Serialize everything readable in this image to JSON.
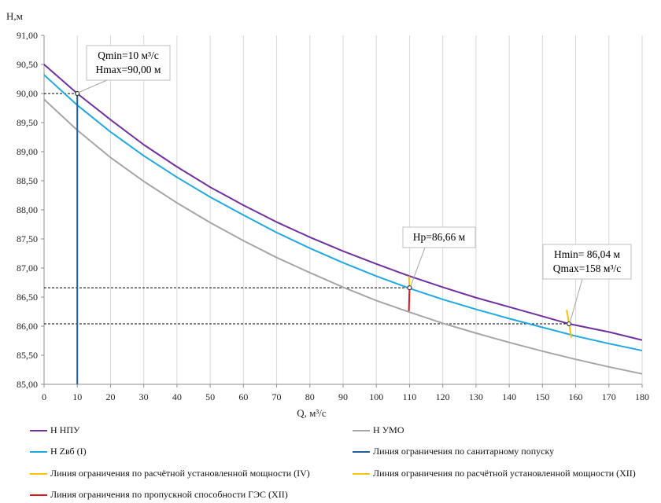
{
  "chart_data": {
    "type": "line",
    "xlabel": "Q, м³/с",
    "ylabel": "Н,м",
    "xlim": [
      0,
      180
    ],
    "ylim": [
      85.0,
      91.0
    ],
    "x_ticks": [
      "0",
      "10",
      "20",
      "30",
      "40",
      "50",
      "60",
      "70",
      "80",
      "90",
      "100",
      "110",
      "120",
      "130",
      "140",
      "150",
      "160",
      "170",
      "180"
    ],
    "y_ticks": [
      "85,00",
      "85,50",
      "86,00",
      "86,50",
      "87,00",
      "87,50",
      "88,00",
      "88,50",
      "89,00",
      "89,50",
      "90,00",
      "90,50",
      "91,00"
    ],
    "grid": "vertical",
    "series": [
      {
        "name": "Н НПУ",
        "color": "#7030a0",
        "x": [
          0,
          10,
          20,
          30,
          40,
          50,
          60,
          70,
          80,
          90,
          100,
          110,
          120,
          130,
          140,
          150,
          158,
          170,
          180
        ],
        "y": [
          90.5,
          90.0,
          89.55,
          89.12,
          88.74,
          88.39,
          88.08,
          87.79,
          87.53,
          87.29,
          87.07,
          86.86,
          86.67,
          86.49,
          86.33,
          86.17,
          86.04,
          85.9,
          85.76
        ]
      },
      {
        "name": "Н Zвб (I)",
        "color": "#1fa9e1",
        "x": [
          0,
          10,
          20,
          30,
          40,
          50,
          60,
          70,
          80,
          90,
          100,
          110,
          120,
          130,
          140,
          150,
          160,
          170,
          180
        ],
        "y": [
          90.32,
          89.8,
          89.34,
          88.93,
          88.56,
          88.22,
          87.91,
          87.61,
          87.34,
          87.09,
          86.86,
          86.65,
          86.46,
          86.29,
          86.13,
          85.98,
          85.83,
          85.7,
          85.58
        ]
      },
      {
        "name": "Н УМО",
        "color": "#a6a6a6",
        "x": [
          0,
          10,
          20,
          30,
          40,
          50,
          60,
          70,
          80,
          90,
          100,
          110,
          120,
          130,
          140,
          150,
          160,
          170,
          180
        ],
        "y": [
          89.9,
          89.37,
          88.9,
          88.49,
          88.12,
          87.78,
          87.47,
          87.18,
          86.92,
          86.67,
          86.44,
          86.24,
          86.05,
          85.88,
          85.72,
          85.57,
          85.43,
          85.3,
          85.18
        ]
      },
      {
        "name": "Линия ограничения по санитарному попуску",
        "color": "#1f5f9e",
        "x": [
          10,
          10
        ],
        "y": [
          85.0,
          90.0
        ]
      },
      {
        "name": "Линия ограничения по расчётной установленной мощности (IV)",
        "color": "#ffc000",
        "x": [
          109.8,
          110
        ],
        "y": [
          86.86,
          86.66
        ]
      },
      {
        "name": "Линия ограничения по расчётной установленной мощности (XII)",
        "color": "#ffc000",
        "x": [
          157.3,
          158,
          158.7
        ],
        "y": [
          86.28,
          86.04,
          85.8
        ]
      },
      {
        "name": "Линия ограничения по пропускной способности ГЭС (XII)",
        "color": "#e0151d",
        "x": [
          110,
          109.8
        ],
        "y": [
          86.66,
          86.26
        ]
      }
    ],
    "reference_lines": [
      {
        "x_end": 10,
        "y": 90.0
      },
      {
        "x_end": 110,
        "y": 86.66
      },
      {
        "x_end": 158,
        "y": 86.04
      }
    ],
    "markers": [
      {
        "x": 10,
        "y": 90.0
      },
      {
        "x": 110,
        "y": 86.66
      },
      {
        "x": 158,
        "y": 86.04
      }
    ],
    "annotations": [
      {
        "lines": [
          "Qmin=10 м³/с",
          "Hmax=90,00 м"
        ],
        "x": 10,
        "y": 90.0
      },
      {
        "lines": [
          "Hp=86,66 м"
        ],
        "x": 110,
        "y": 86.66
      },
      {
        "lines": [
          "Hmin= 86,04 м",
          "Qmax=158 м³/с"
        ],
        "x": 158,
        "y": 86.04
      }
    ]
  },
  "legend": [
    {
      "label": "Н НПУ",
      "color": "#7030a0"
    },
    {
      "label": "Н УМО",
      "color": "#a6a6a6"
    },
    {
      "label": "Н Zвб (I)",
      "color": "#1fa9e1"
    },
    {
      "label": "Линия ограничения по санитарному попуску",
      "color": "#1f5f9e"
    },
    {
      "label": "Линия ограничения по расчётной установленной мощности (IV)",
      "color": "#ffc000"
    },
    {
      "label": "Линия ограничения по расчётной установленной мощности (XII)",
      "color": "#ffc000"
    },
    {
      "label": "Линия ограничения по пропускной способности ГЭС (XII)",
      "color": "#e0151d"
    }
  ]
}
